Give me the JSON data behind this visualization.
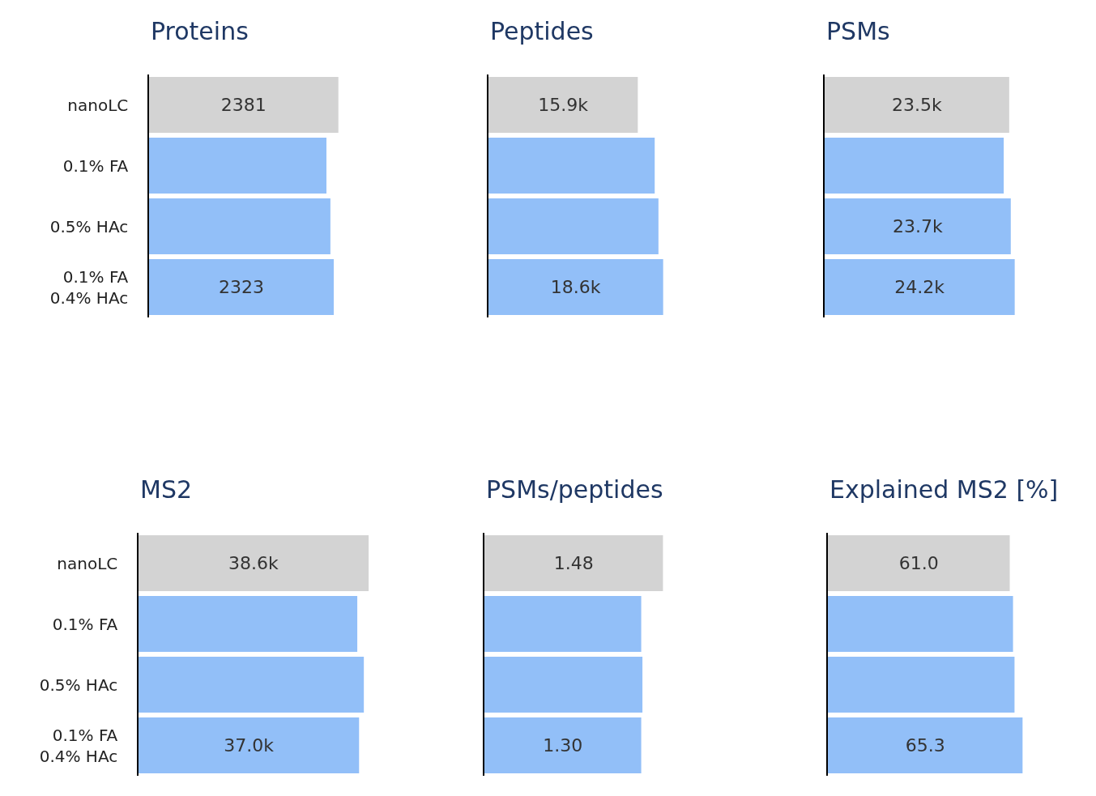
{
  "chart_data": [
    {
      "type": "bar",
      "orientation": "horizontal",
      "title": "Proteins",
      "tick_labels": "y",
      "categories": [
        "nanoLC",
        "0.1% FA",
        "0.5% HAc",
        "0.1% FA\n0.4% HAc"
      ],
      "values": [
        2381,
        2231,
        2281,
        2323
      ],
      "colors": [
        "#d3d3d3",
        "#92bff8",
        "#92bff8",
        "#92bff8"
      ],
      "value_labels": [
        "2381",
        null,
        null,
        "2323"
      ]
    },
    {
      "type": "bar",
      "orientation": "horizontal",
      "title": "Peptides",
      "tick_labels": false,
      "categories": [
        null,
        null,
        null,
        null
      ],
      "values": [
        15900,
        17700,
        18100,
        18600
      ],
      "colors": [
        "#d3d3d3",
        "#92bff8",
        "#92bff8",
        "#92bff8"
      ],
      "value_labels": [
        "15.9k",
        null,
        null,
        "18.6k"
      ]
    },
    {
      "type": "bar",
      "orientation": "horizontal",
      "title": "PSMs",
      "tick_labels": false,
      "categories": [
        null,
        null,
        null,
        null
      ],
      "values": [
        23500,
        22800,
        23700,
        24200
      ],
      "colors": [
        "#d3d3d3",
        "#92bff8",
        "#92bff8",
        "#92bff8"
      ],
      "value_labels": [
        "23.5k",
        null,
        "23.7k",
        "24.2k"
      ]
    },
    {
      "type": "bar",
      "orientation": "horizontal",
      "title": "MS2",
      "tick_labels": "y",
      "categories": [
        "nanoLC",
        "0.1% FA",
        "0.5% HAc",
        "0.1% FA\n0.4% HAc"
      ],
      "values": [
        38600,
        36700,
        37800,
        37000
      ],
      "colors": [
        "#d3d3d3",
        "#92bff8",
        "#92bff8",
        "#92bff8"
      ],
      "value_labels": [
        "38.6k",
        null,
        null,
        "37.0k"
      ]
    },
    {
      "type": "bar",
      "orientation": "horizontal",
      "title": "PSMs/peptides",
      "tick_labels": false,
      "categories": [
        null,
        null,
        null,
        null
      ],
      "values": [
        1.48,
        1.3,
        1.31,
        1.3
      ],
      "colors": [
        "#d3d3d3",
        "#92bff8",
        "#92bff8",
        "#92bff8"
      ],
      "value_labels": [
        "1.48",
        null,
        null,
        "1.30"
      ]
    },
    {
      "type": "bar",
      "orientation": "horizontal",
      "title": "Explained MS2 [%]",
      "tick_labels": false,
      "categories": [
        null,
        null,
        null,
        null
      ],
      "values": [
        61.0,
        62.1,
        62.6,
        65.3
      ],
      "colors": [
        "#d3d3d3",
        "#92bff8",
        "#92bff8",
        "#92bff8"
      ],
      "value_labels": [
        "61.0",
        null,
        null,
        "65.3"
      ]
    }
  ]
}
